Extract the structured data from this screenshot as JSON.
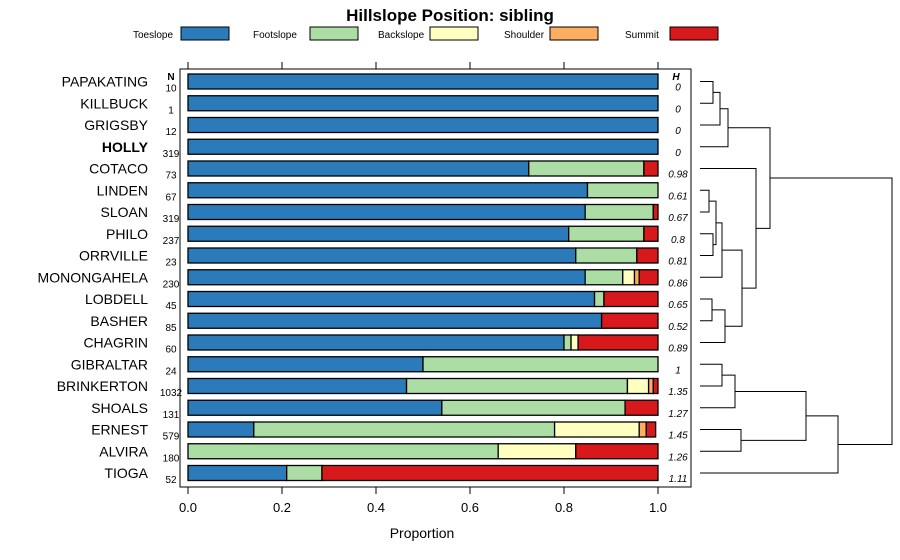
{
  "chart_data": {
    "type": "bar",
    "orientation": "horizontal",
    "stacked": true,
    "title": "Hillslope Position: sibling",
    "xlabel": "Proportion",
    "ylabel": "",
    "xlim": [
      0,
      1
    ],
    "x_ticks": [
      "0.0",
      "0.2",
      "0.4",
      "0.6",
      "0.8",
      "1.0"
    ],
    "n_header": "N",
    "h_header": "H",
    "highlight": "HOLLY",
    "legend_position": "top",
    "legend": [
      {
        "name": "Toeslope",
        "color": "#2b7bba"
      },
      {
        "name": "Footslope",
        "color": "#abdda4"
      },
      {
        "name": "Backslope",
        "color": "#ffffbf"
      },
      {
        "name": "Shoulder",
        "color": "#fdae61"
      },
      {
        "name": "Summit",
        "color": "#d7191c"
      }
    ],
    "categories": [
      "PAPAKATING",
      "KILLBUCK",
      "GRIGSBY",
      "HOLLY",
      "COTACO",
      "LINDEN",
      "SLOAN",
      "PHILO",
      "ORRVILLE",
      "MONONGAHELA",
      "LOBDELL",
      "BASHER",
      "CHAGRIN",
      "GIBRALTAR",
      "BRINKERTON",
      "SHOALS",
      "ERNEST",
      "ALVIRA",
      "TIOGA"
    ],
    "n": [
      "10",
      "1",
      "12",
      "319",
      "73",
      "67",
      "319",
      "237",
      "23",
      "230",
      "45",
      "85",
      "60",
      "24",
      "1032",
      "131",
      "579",
      "180",
      "52"
    ],
    "h": [
      "0",
      "0",
      "0",
      "0",
      "0.98",
      "0.61",
      "0.67",
      "0.8",
      "0.81",
      "0.86",
      "0.65",
      "0.52",
      "0.89",
      "1",
      "1.35",
      "1.27",
      "1.45",
      "1.26",
      "1.11"
    ],
    "series": [
      {
        "name": "Toeslope",
        "values": [
          1,
          1,
          1,
          1,
          0.725,
          0.85,
          0.845,
          0.81,
          0.825,
          0.845,
          0.865,
          0.88,
          0.8,
          0.5,
          0.465,
          0.54,
          0.14,
          0,
          0.21
        ]
      },
      {
        "name": "Footslope",
        "values": [
          0,
          0,
          0,
          0,
          0.245,
          0.15,
          0.145,
          0.16,
          0.13,
          0.08,
          0.02,
          0,
          0.015,
          0.5,
          0.47,
          0.39,
          0.64,
          0.66,
          0.075
        ]
      },
      {
        "name": "Backslope",
        "values": [
          0,
          0,
          0,
          0,
          0,
          0,
          0,
          0,
          0,
          0.025,
          0,
          0,
          0.015,
          0,
          0.045,
          0,
          0.18,
          0.165,
          0
        ]
      },
      {
        "name": "Shoulder",
        "values": [
          0,
          0,
          0,
          0,
          0,
          0,
          0,
          0,
          0,
          0.01,
          0,
          0,
          0,
          0,
          0.01,
          0,
          0.015,
          0,
          0
        ]
      },
      {
        "name": "Summit",
        "values": [
          0,
          0,
          0,
          0,
          0.03,
          0,
          0.01,
          0.03,
          0.045,
          0.04,
          0.115,
          0.12,
          0.17,
          0,
          0.01,
          0.07,
          0.02,
          0.175,
          0.715
        ]
      }
    ]
  }
}
